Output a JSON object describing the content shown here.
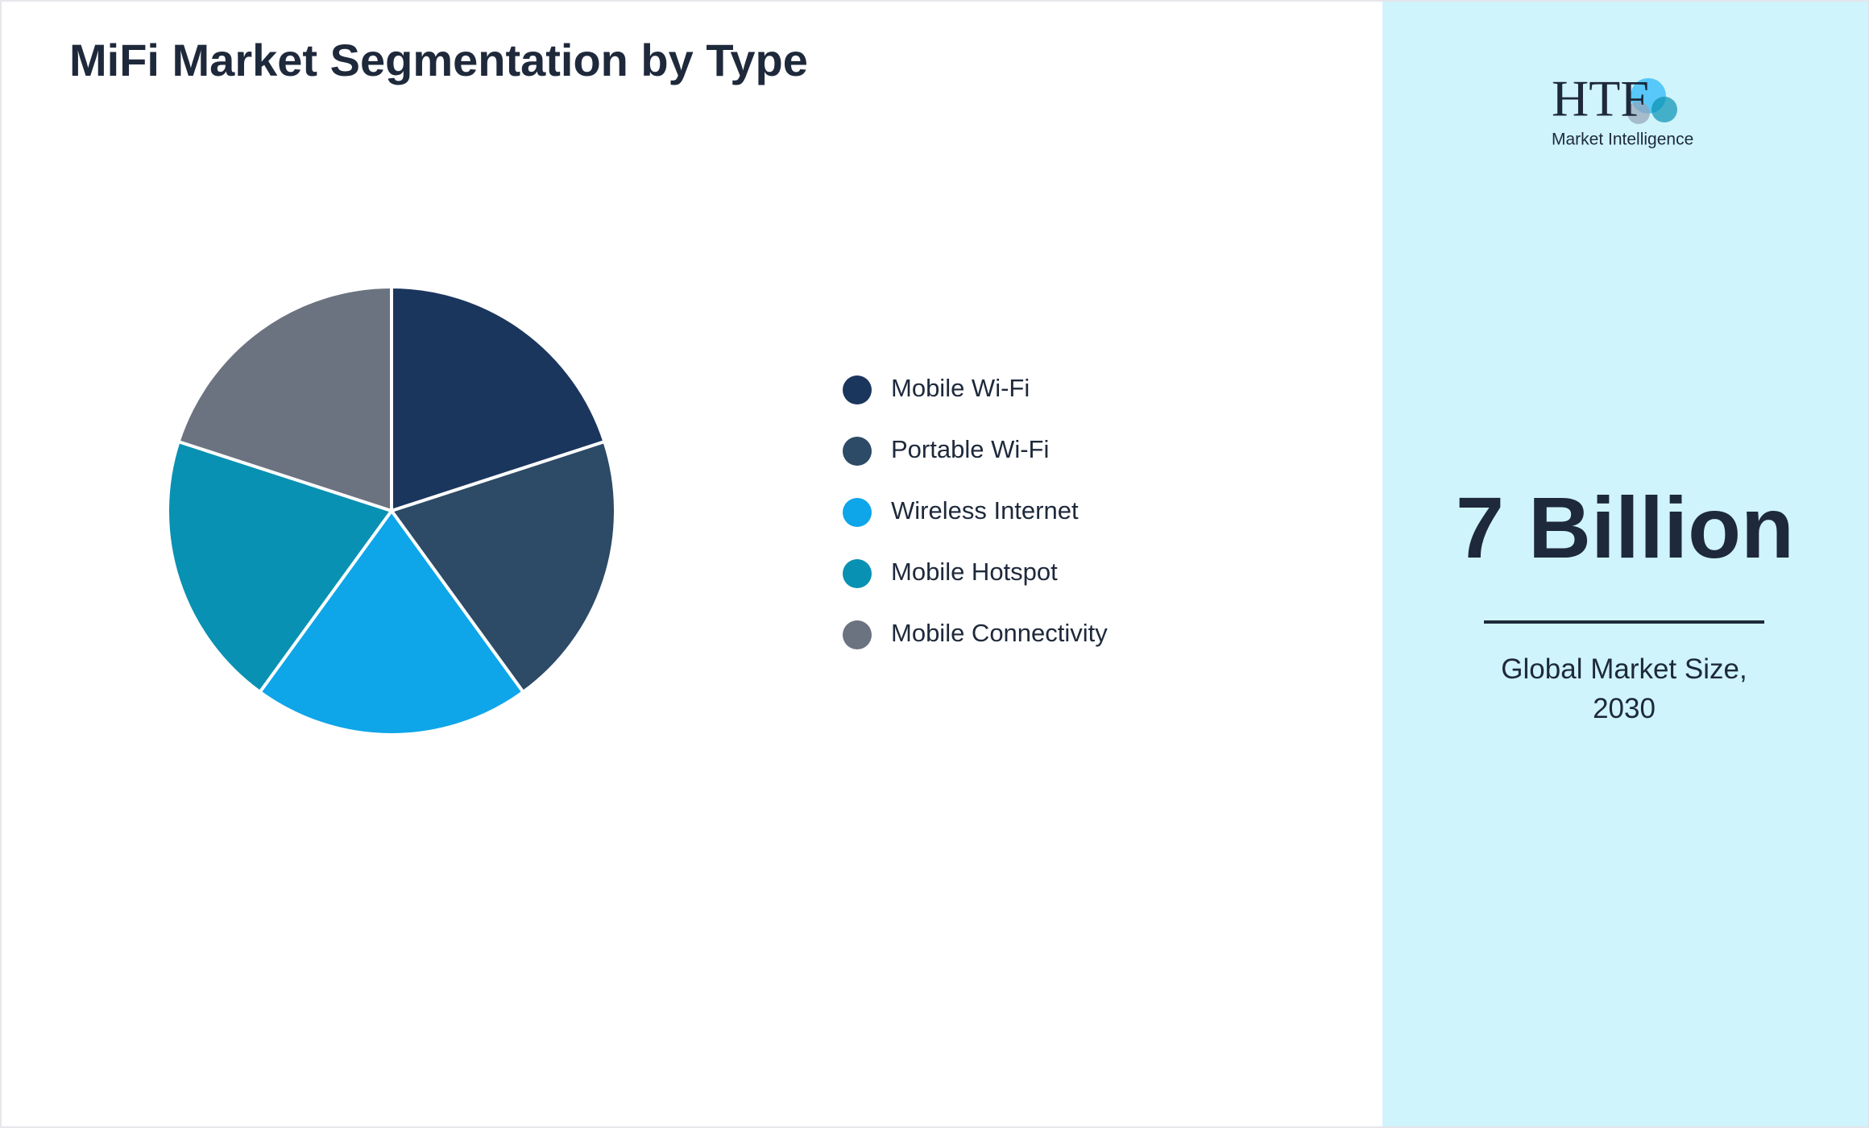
{
  "chart_data": {
    "type": "pie",
    "title": "MiFi Market Segmentation by Type",
    "categories": [
      "Mobile Wi-Fi",
      "Portable Wi-Fi",
      "Wireless Internet",
      "Mobile Hotspot",
      "Mobile Connectivity"
    ],
    "values": [
      20,
      20,
      20,
      20,
      20
    ],
    "colors": [
      "#1b365d",
      "#2d4a66",
      "#0ea5e9",
      "#0891b2",
      "#6b7280"
    ],
    "legend": "right"
  },
  "panel": {
    "logo": "HTF",
    "logo_sub": "Market Intelligence",
    "headline": "7 Billion",
    "caption": "Global Market Size, 2030"
  }
}
